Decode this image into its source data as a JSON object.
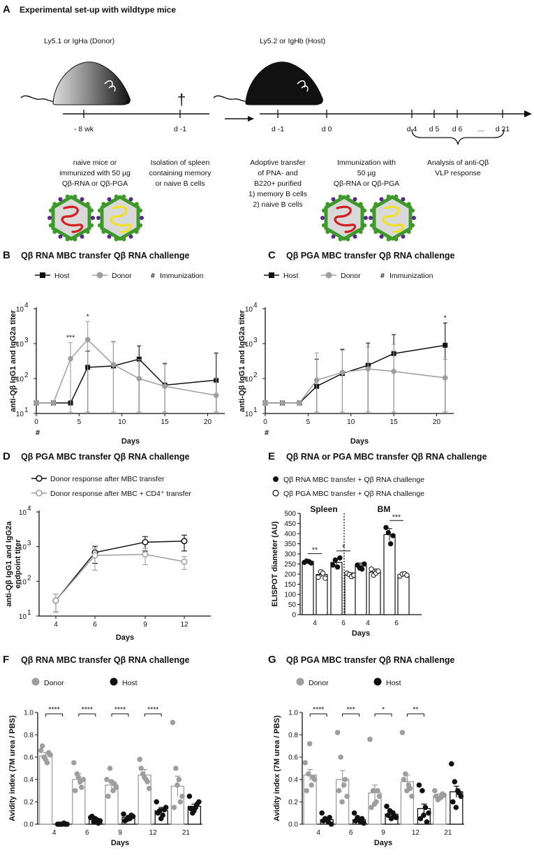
{
  "figure_title": "Experimental set-up with wildtype mice",
  "colors": {
    "host": "#111111",
    "donor": "#9e9e9e",
    "rna": "#d21f1f",
    "pga": "#f1df2a",
    "capsid_green": "#3d9a2a",
    "capsid_purple": "#5a2a8a"
  },
  "panel_a": {
    "label": "A",
    "donor_title": "Ly5.1 or IgHa (Donor)",
    "host_title": "Ly5.2 or IgHb (Host)",
    "dagger": "†",
    "timeline1_ticks": [
      "- 8 wk",
      "d -1"
    ],
    "timeline2_ticks": [
      "d -1",
      "d 0",
      "d 4",
      "d 5",
      "d 6",
      "...",
      "d 21"
    ],
    "text_naive_immunized": [
      "naive mice or",
      "immunized with 50 µg",
      "Qβ-RNA or Qβ-PGA"
    ],
    "text_isolation": [
      "Isolation of spleen",
      "containing memory",
      "or naive B cells"
    ],
    "text_adoptive": [
      "Adoptive transfer",
      "of PNA- and",
      "B220+ purified",
      "1) memory B cells",
      "2) naive B cells"
    ],
    "text_immunization": [
      "Immunization with",
      "50 µg",
      "Qβ-RNA or Qβ-PGA"
    ],
    "text_analysis": [
      "Analysis of anti-Qβ",
      "VLP response"
    ],
    "icons": [
      "virus-rna-icon",
      "virus-pga-icon",
      "mouse-donor-icon",
      "mouse-host-icon"
    ]
  },
  "legends": {
    "host": "Host",
    "donor": "Donor",
    "immunization_symbol": "#",
    "immunization": "Immunization"
  },
  "chart_data": [
    {
      "panel": "B",
      "type": "line",
      "title": "Qβ RNA MBC transfer Qβ RNA challenge",
      "xlabel": "Days",
      "ylabel": "anti-Qβ IgG1 and IgG2a titer",
      "yscale": "log",
      "ylim_exp": [
        1,
        4
      ],
      "xlim": [
        0,
        22
      ],
      "xticks": [
        "0",
        "5",
        "10",
        "15",
        "20"
      ],
      "yticks": [
        "10",
        "10",
        "10",
        "10"
      ],
      "yticks_sup": [
        "1",
        "2",
        "3",
        "4"
      ],
      "immunization_marker": "#",
      "series": [
        {
          "name": "Host",
          "x": [
            0,
            2,
            4,
            6,
            9,
            12,
            15,
            21
          ],
          "y": [
            20,
            20,
            20,
            210,
            230,
            360,
            65,
            90
          ],
          "err": [
            0,
            0,
            0,
            400,
            900,
            500,
            200,
            450
          ]
        },
        {
          "name": "Donor",
          "x": [
            0,
            2,
            4,
            6,
            9,
            12,
            15,
            21
          ],
          "y": [
            20,
            20,
            370,
            1300,
            250,
            100,
            60,
            33
          ],
          "err": [
            0,
            0,
            700,
            3000,
            900,
            250,
            220,
            70
          ]
        }
      ],
      "annotations": [
        {
          "x": 4,
          "text": "***"
        },
        {
          "x": 6,
          "text": "*"
        }
      ]
    },
    {
      "panel": "C",
      "type": "line",
      "title": "Qβ PGA MBC transfer Qβ RNA challenge",
      "xlabel": "Days",
      "ylabel": "anti-Qβ IgG1 and IgG2a titer",
      "yscale": "log",
      "ylim_exp": [
        1,
        4
      ],
      "xlim": [
        0,
        22
      ],
      "xticks": [
        "0",
        "5",
        "10",
        "15",
        "20"
      ],
      "yticks": [
        "10",
        "10",
        "10",
        "10"
      ],
      "yticks_sup": [
        "1",
        "2",
        "3",
        "4"
      ],
      "immunization_marker": "#",
      "series": [
        {
          "name": "Host",
          "x": [
            0,
            2,
            4,
            6,
            9,
            12,
            15,
            21
          ],
          "y": [
            20,
            20,
            20,
            60,
            140,
            240,
            520,
            900
          ],
          "err": [
            0,
            0,
            0,
            300,
            550,
            800,
            1300,
            3000
          ]
        },
        {
          "name": "Donor",
          "x": [
            0,
            2,
            4,
            6,
            9,
            12,
            15,
            21
          ],
          "y": [
            20,
            20,
            20,
            90,
            150,
            190,
            160,
            105
          ],
          "err": [
            0,
            0,
            0,
            450,
            500,
            600,
            800,
            250
          ]
        }
      ],
      "annotations": [
        {
          "x": 21,
          "text": "*"
        }
      ]
    },
    {
      "panel": "D",
      "type": "line",
      "title": "Qβ PGA MBC transfer Qβ RNA challenge",
      "xlabel": "Days",
      "ylabel_lines": [
        "anti-Qβ IgG1 and IgG2a",
        "endpoint titer"
      ],
      "yscale": "log",
      "ylim_exp": [
        1,
        4
      ],
      "xticks": [
        "4",
        "6",
        "9",
        "12"
      ],
      "yticks": [
        "10",
        "10",
        "10",
        "10"
      ],
      "yticks_sup": [
        "1",
        "2",
        "3",
        "4"
      ],
      "series": [
        {
          "name": "Donor response after MBC transfer",
          "x": [
            4,
            6,
            9,
            12
          ],
          "y": [
            28,
            680,
            1350,
            1450
          ],
          "err": [
            15,
            350,
            600,
            700
          ]
        },
        {
          "name": "Donor response after MBC + CD4⁺ transfer",
          "x": [
            4,
            6,
            9,
            12
          ],
          "y": [
            28,
            560,
            600,
            370
          ],
          "err": [
            15,
            350,
            300,
            150
          ]
        }
      ]
    },
    {
      "panel": "E",
      "type": "bar",
      "title": "Qβ RNA or PGA MBC transfer Qβ RNA challenge",
      "xlabel": "Days",
      "ylabel": "ELISPOT diameter (AU)",
      "ylim": [
        0,
        500
      ],
      "yticks": [
        "0",
        "50",
        "100",
        "150",
        "200",
        "250",
        "300",
        "350",
        "400",
        "450",
        "500"
      ],
      "legend": [
        "Qβ RNA MBC transfer + Qβ RNA challenge",
        "Qβ PGA MBC transfer + Qβ RNA challenge"
      ],
      "groups": [
        "Spleen",
        "BM"
      ],
      "categories": [
        "4",
        "6",
        "4",
        "6"
      ],
      "series": [
        {
          "name": "Qβ RNA MBC transfer + Qβ RNA challenge",
          "values": [
            262,
            258,
            240,
            395
          ],
          "err": [
            5,
            20,
            15,
            30
          ]
        },
        {
          "name": "Qβ PGA MBC transfer + Qβ RNA challenge",
          "values": [
            198,
            197,
            210,
            197
          ],
          "err": [
            12,
            10,
            15,
            6
          ]
        }
      ],
      "points": {
        "rna": [
          [
            258,
            265,
            262,
            255
          ],
          [
            245,
            270,
            235,
            280
          ],
          [
            245,
            230,
            225,
            250
          ],
          [
            430,
            405,
            350,
            390
          ]
        ],
        "pga": [
          [
            185,
            212,
            205,
            180
          ],
          [
            205,
            198,
            188,
            195
          ],
          [
            225,
            195,
            205,
            215
          ],
          [
            190,
            200,
            202,
            195
          ]
        ]
      },
      "annotations": [
        {
          "cat": 0,
          "text": "**"
        },
        {
          "cat": 1,
          "text": "*"
        },
        {
          "cat": 3,
          "text": "***"
        }
      ]
    },
    {
      "panel": "F",
      "type": "bar",
      "title": "Qβ RNA MBC transfer Qβ RNA challenge",
      "xlabel": "Days",
      "ylabel": "Avidity index (7M urea / PBS)",
      "ylim": [
        0,
        1
      ],
      "yticks": [
        "0.0",
        "0.2",
        "0.4",
        "0.6",
        "0.8",
        "1.0"
      ],
      "categories": [
        "4",
        "6",
        "9",
        "12",
        "21"
      ],
      "series": [
        {
          "name": "Donor",
          "values": [
            0.61,
            0.4,
            0.35,
            0.44,
            0.34
          ],
          "err": [
            0.03,
            0.05,
            0.04,
            0.05,
            0.09
          ]
        },
        {
          "name": "Host",
          "values": [
            0.0,
            0.04,
            0.06,
            0.12,
            0.16
          ],
          "err": [
            0.003,
            0.01,
            0.01,
            0.03,
            0.02
          ]
        }
      ],
      "points": {
        "donor": [
          [
            0.66,
            0.6,
            0.55,
            0.62,
            0.7,
            0.58,
            0.64
          ],
          [
            0.55,
            0.45,
            0.38,
            0.4,
            0.3,
            0.42,
            0.33
          ],
          [
            0.4,
            0.5,
            0.3,
            0.33,
            0.25,
            0.38,
            0.36
          ],
          [
            0.58,
            0.45,
            0.4,
            0.32,
            0.5,
            0.42,
            0.38
          ],
          [
            0.91,
            0.5,
            0.4,
            0.25,
            0.15,
            0.35,
            0.2
          ]
        ],
        "host": [
          [
            0.0,
            0.0,
            0.01,
            0.0,
            0.0,
            0.0,
            0.0
          ],
          [
            0.06,
            0.02,
            0.04,
            0.03,
            0.07,
            0.05,
            0.01
          ],
          [
            0.09,
            0.04,
            0.05,
            0.07,
            0.03,
            0.06,
            0.08
          ],
          [
            0.2,
            0.12,
            0.08,
            0.15,
            0.1,
            0.05,
            0.13
          ],
          [
            0.25,
            0.1,
            0.15,
            0.2,
            0.14,
            0.12,
            0.18
          ]
        ]
      },
      "annotations": [
        {
          "cat": 0,
          "text": "****"
        },
        {
          "cat": 1,
          "text": "****"
        },
        {
          "cat": 2,
          "text": "****"
        },
        {
          "cat": 3,
          "text": "****"
        }
      ]
    },
    {
      "panel": "G",
      "type": "bar",
      "title": "Qβ PGA MBC transfer Qβ RNA challenge",
      "xlabel": "Days",
      "ylabel": "Avidity index (7M urea / PBS)",
      "ylim": [
        0,
        1
      ],
      "yticks": [
        "0.0",
        "0.2",
        "0.4",
        "0.6",
        "0.8",
        "1.0"
      ],
      "categories": [
        "4",
        "6",
        "9",
        "12",
        "21"
      ],
      "series": [
        {
          "name": "Donor",
          "values": [
            0.44,
            0.4,
            0.28,
            0.38,
            0.25
          ],
          "err": [
            0.05,
            0.08,
            0.07,
            0.06,
            0.02
          ]
        },
        {
          "name": "Host",
          "values": [
            0.04,
            0.04,
            0.09,
            0.14,
            0.29
          ],
          "err": [
            0.02,
            0.02,
            0.03,
            0.04,
            0.05
          ]
        }
      ],
      "points": {
        "donor": [
          [
            0.55,
            0.45,
            0.35,
            0.4,
            0.3,
            0.72,
            0.42
          ],
          [
            0.82,
            0.6,
            0.35,
            0.25,
            0.3,
            0.2,
            0.4
          ],
          [
            0.76,
            0.3,
            0.2,
            0.25,
            0.15,
            0.18,
            0.3
          ],
          [
            0.82,
            0.45,
            0.35,
            0.25,
            0.4,
            0.3,
            0.32
          ],
          [
            0.3,
            0.22,
            0.24,
            0.26,
            0.25,
            0.23,
            0.27
          ]
        ],
        "host": [
          [
            0.1,
            0.05,
            0.02,
            0.0,
            0.03,
            0.04,
            0.06
          ],
          [
            0.1,
            0.06,
            0.02,
            0.01,
            0.03,
            0.04,
            0.05
          ],
          [
            0.16,
            0.12,
            0.1,
            0.06,
            0.08,
            0.05,
            0.07
          ],
          [
            0.35,
            0.3,
            0.15,
            0.1,
            0.05,
            0.08,
            0.02
          ],
          [
            0.54,
            0.38,
            0.3,
            0.25,
            0.2,
            0.15,
            0.28
          ]
        ]
      },
      "annotations": [
        {
          "cat": 0,
          "text": "****"
        },
        {
          "cat": 1,
          "text": "***"
        },
        {
          "cat": 2,
          "text": "*"
        },
        {
          "cat": 3,
          "text": "**"
        }
      ]
    }
  ]
}
